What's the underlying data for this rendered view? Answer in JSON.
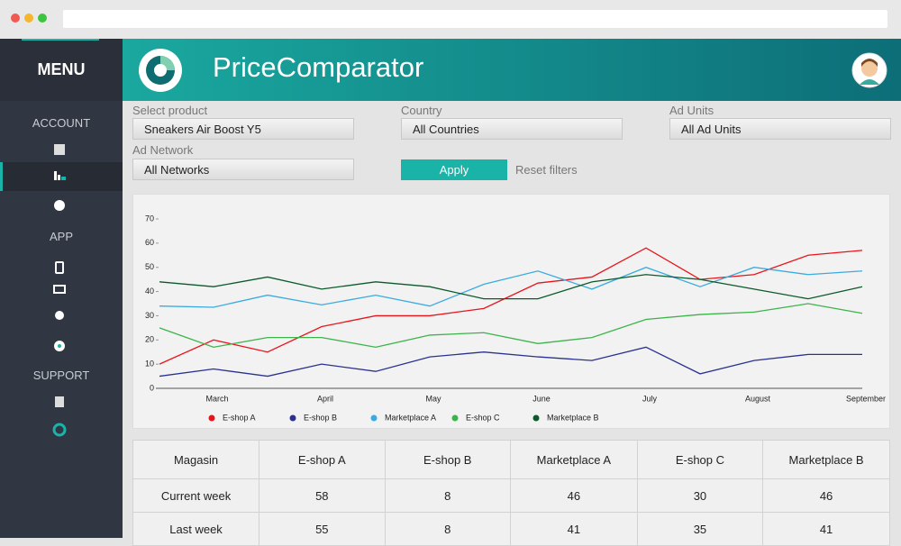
{
  "sidebar": {
    "title": "MENU",
    "sections": [
      "ACCOUNT",
      "APP",
      "SUPPORT"
    ]
  },
  "header": {
    "title": "PriceComparator"
  },
  "filters": {
    "product": {
      "label": "Select product",
      "value": "Sneakers Air Boost Y5"
    },
    "country": {
      "label": "Country",
      "value": "All Countries"
    },
    "ad_units": {
      "label": "Ad Units",
      "value": "All Ad Units"
    },
    "ad_network": {
      "label": "Ad Network",
      "value": "All Networks"
    },
    "apply": "Apply",
    "reset": "Reset filters"
  },
  "chart_data": {
    "type": "line",
    "categories": [
      null,
      "March",
      null,
      "April",
      null,
      "May",
      null,
      "June",
      null,
      "July",
      null,
      "August",
      null,
      "September"
    ],
    "ylim": [
      0,
      70
    ],
    "yticks": [
      0,
      10,
      20,
      30,
      40,
      50,
      60,
      70
    ],
    "series": [
      {
        "name": "E-shop A",
        "color": "#e8141b",
        "values": [
          10,
          20,
          15,
          25.5,
          30,
          30,
          33,
          43.5,
          46,
          58,
          45,
          47,
          55,
          57
        ]
      },
      {
        "name": "E-shop B",
        "color": "#2a3190",
        "values": [
          5,
          8,
          5,
          10,
          7,
          13,
          15,
          13,
          11.5,
          17,
          6,
          11.5,
          14,
          14
        ]
      },
      {
        "name": "Marketplace A",
        "color": "#3aabe0",
        "values": [
          34,
          33.5,
          38.5,
          34.5,
          38.5,
          34,
          43,
          48.5,
          41,
          50,
          42,
          50,
          47,
          48.5
        ]
      },
      {
        "name": "E-shop C",
        "color": "#3cb44a",
        "values": [
          25,
          17,
          21,
          21,
          17,
          22,
          23,
          18.5,
          21,
          28.5,
          30.5,
          31.5,
          35,
          31
        ]
      },
      {
        "name": "Marketplace B",
        "color": "#0b5a2a",
        "values": [
          44,
          42,
          46,
          41,
          44,
          42,
          37,
          37,
          44,
          47,
          45,
          41,
          37,
          42
        ]
      }
    ]
  },
  "table": {
    "header": [
      "Magasin",
      "E-shop A",
      "E-shop B",
      "Marketplace A",
      "E-shop C",
      "Marketplace B"
    ],
    "rows": [
      [
        "Current week",
        58,
        8,
        46,
        30,
        46
      ],
      [
        "Last week",
        55,
        8,
        41,
        35,
        41
      ]
    ]
  }
}
